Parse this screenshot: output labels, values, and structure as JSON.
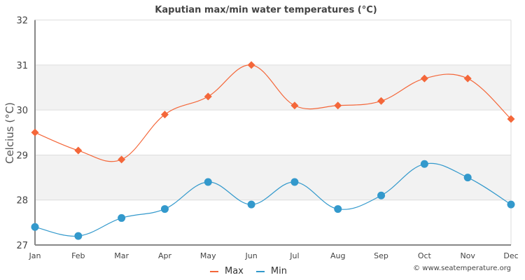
{
  "chart_data": {
    "type": "line",
    "title": "Kaputian max/min water temperatures (°C)",
    "xlabel": "",
    "ylabel": "Celcius (°C)",
    "categories": [
      "Jan",
      "Feb",
      "Mar",
      "Apr",
      "May",
      "Jun",
      "Jul",
      "Aug",
      "Sep",
      "Oct",
      "Nov",
      "Dec"
    ],
    "ylim": [
      27,
      32
    ],
    "yticks": [
      27,
      28,
      29,
      30,
      31,
      32
    ],
    "grid": true,
    "legend_position": "bottom-center",
    "series": [
      {
        "name": "Max",
        "color": "#f4673a",
        "marker": "diamond",
        "values": [
          29.5,
          29.1,
          28.9,
          29.9,
          30.3,
          31.0,
          30.1,
          30.1,
          30.2,
          30.7,
          30.7,
          29.8
        ]
      },
      {
        "name": "Min",
        "color": "#3399cc",
        "marker": "circle",
        "values": [
          27.4,
          27.2,
          27.6,
          27.8,
          28.4,
          27.9,
          28.4,
          27.8,
          28.1,
          28.8,
          28.5,
          27.9
        ]
      }
    ]
  },
  "legend": {
    "max_label": "Max",
    "min_label": "Min"
  },
  "credit": "© www.seatemperature.org"
}
